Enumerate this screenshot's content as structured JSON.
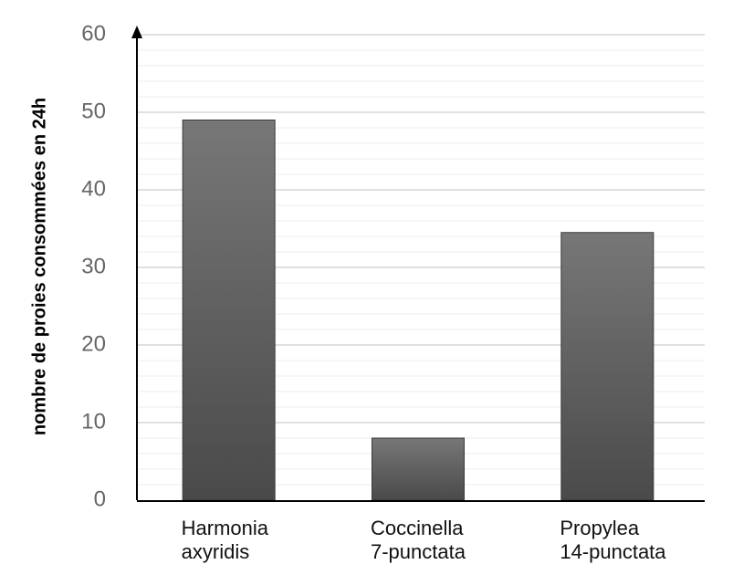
{
  "chart_data": {
    "type": "bar",
    "title": "",
    "xlabel": "",
    "ylabel": "nombre de proies consommées en 24h",
    "categories": [
      [
        "Harmonia",
        "axyridis"
      ],
      [
        "Coccinella",
        "7-punctata"
      ],
      [
        "Propylea",
        "14-punctata"
      ]
    ],
    "values": [
      49,
      8,
      34.5
    ],
    "ylim": [
      0,
      60
    ],
    "yticks": [
      0,
      10,
      20,
      30,
      40,
      50,
      60
    ],
    "minor_grid_step": 2,
    "grid": true,
    "legend": "none",
    "colors": {
      "bar_top": "#777777",
      "bar_bottom": "#4a4a4a",
      "grid_major": "#d6d6d6",
      "grid_minor": "#ececec",
      "axis": "#000000"
    }
  }
}
